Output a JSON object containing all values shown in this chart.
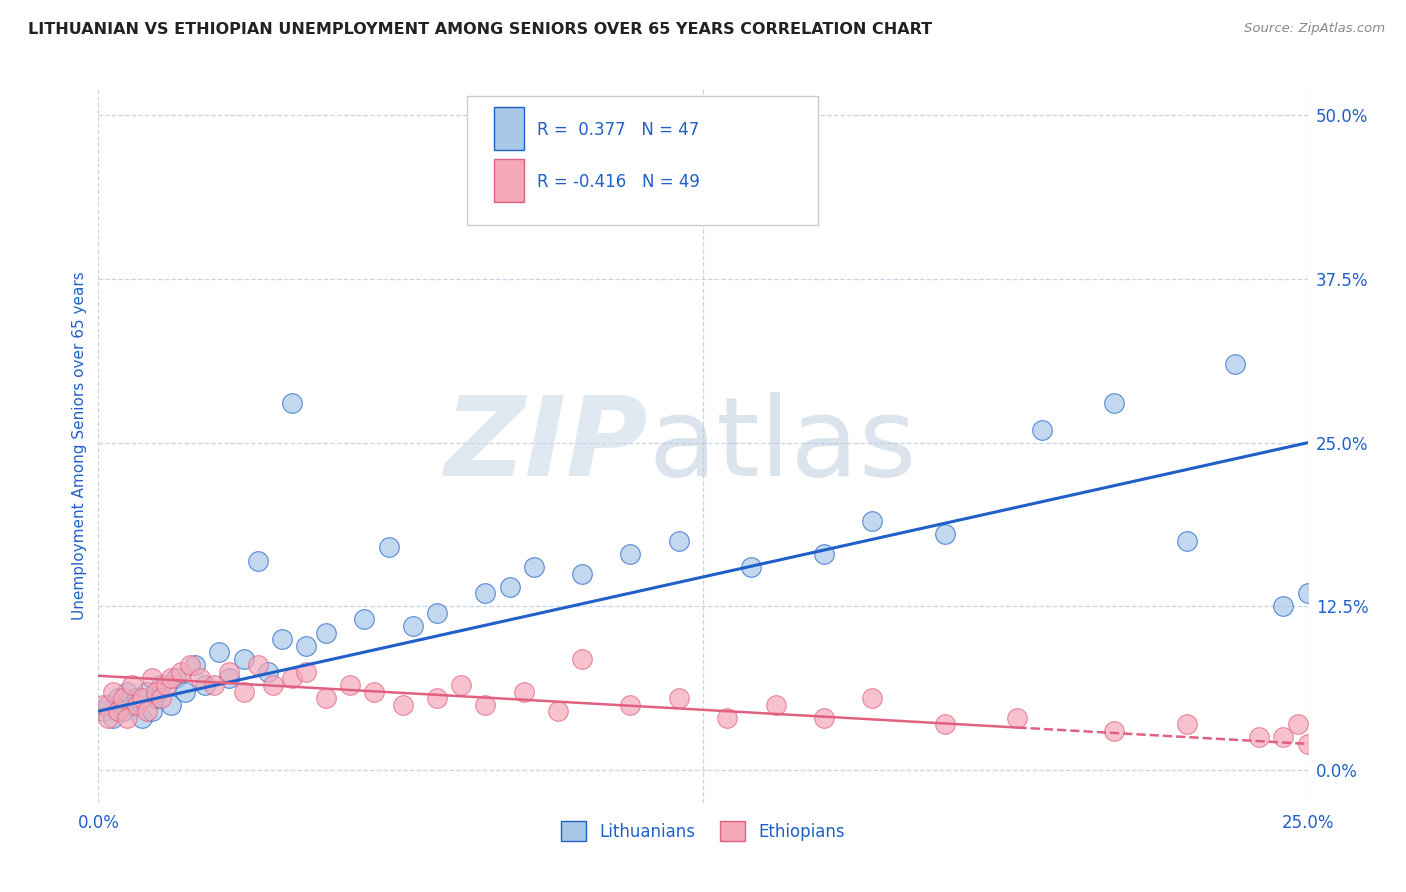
{
  "title": "LITHUANIAN VS ETHIOPIAN UNEMPLOYMENT AMONG SENIORS OVER 65 YEARS CORRELATION CHART",
  "source": "Source: ZipAtlas.com",
  "ylabel": "Unemployment Among Seniors over 65 years",
  "x_range": [
    0.0,
    0.25
  ],
  "y_range": [
    -0.025,
    0.52
  ],
  "watermark_zip": "ZIP",
  "watermark_atlas": "atlas",
  "lithuanian_color": "#a8c8e8",
  "ethiopian_color": "#f4a8b8",
  "line_lith_color": "#2060c8",
  "line_eth_color": "#e06080",
  "lith_scatter_x": [
    0.001,
    0.002,
    0.003,
    0.004,
    0.005,
    0.006,
    0.007,
    0.008,
    0.009,
    0.01,
    0.011,
    0.012,
    0.013,
    0.015,
    0.016,
    0.018,
    0.02,
    0.022,
    0.025,
    0.027,
    0.03,
    0.033,
    0.035,
    0.038,
    0.04,
    0.043,
    0.047,
    0.055,
    0.06,
    0.065,
    0.07,
    0.08,
    0.085,
    0.09,
    0.1,
    0.11,
    0.12,
    0.135,
    0.15,
    0.16,
    0.175,
    0.195,
    0.21,
    0.225,
    0.235,
    0.245,
    0.25
  ],
  "lith_scatter_y": [
    0.045,
    0.05,
    0.04,
    0.055,
    0.045,
    0.06,
    0.05,
    0.055,
    0.04,
    0.06,
    0.045,
    0.055,
    0.065,
    0.05,
    0.07,
    0.06,
    0.08,
    0.065,
    0.09,
    0.07,
    0.085,
    0.16,
    0.075,
    0.1,
    0.28,
    0.095,
    0.105,
    0.115,
    0.17,
    0.11,
    0.12,
    0.135,
    0.14,
    0.155,
    0.15,
    0.165,
    0.175,
    0.155,
    0.165,
    0.19,
    0.18,
    0.26,
    0.28,
    0.175,
    0.31,
    0.125,
    0.135
  ],
  "eth_scatter_x": [
    0.001,
    0.002,
    0.003,
    0.004,
    0.005,
    0.006,
    0.007,
    0.008,
    0.009,
    0.01,
    0.011,
    0.012,
    0.013,
    0.014,
    0.015,
    0.017,
    0.019,
    0.021,
    0.024,
    0.027,
    0.03,
    0.033,
    0.036,
    0.04,
    0.043,
    0.047,
    0.052,
    0.057,
    0.063,
    0.07,
    0.075,
    0.08,
    0.088,
    0.095,
    0.1,
    0.11,
    0.12,
    0.13,
    0.14,
    0.15,
    0.16,
    0.175,
    0.19,
    0.21,
    0.225,
    0.24,
    0.245,
    0.248,
    0.25
  ],
  "eth_scatter_y": [
    0.05,
    0.04,
    0.06,
    0.045,
    0.055,
    0.04,
    0.065,
    0.05,
    0.055,
    0.045,
    0.07,
    0.06,
    0.055,
    0.065,
    0.07,
    0.075,
    0.08,
    0.07,
    0.065,
    0.075,
    0.06,
    0.08,
    0.065,
    0.07,
    0.075,
    0.055,
    0.065,
    0.06,
    0.05,
    0.055,
    0.065,
    0.05,
    0.06,
    0.045,
    0.085,
    0.05,
    0.055,
    0.04,
    0.05,
    0.04,
    0.055,
    0.035,
    0.04,
    0.03,
    0.035,
    0.025,
    0.025,
    0.035,
    0.02
  ],
  "lith_line_x": [
    0.0,
    0.25
  ],
  "lith_line_y": [
    0.045,
    0.25
  ],
  "eth_line_x": [
    0.0,
    0.25
  ],
  "eth_line_y": [
    0.072,
    0.02
  ],
  "grid_color": "#c8d4e4",
  "bg_color": "#ffffff",
  "title_color": "#222222",
  "tick_color": "#2060c8",
  "legend_r1_text": "R =  0.377   N = 47",
  "legend_r2_text": "R = -0.416   N = 49",
  "y_ticks": [
    0.0,
    0.125,
    0.25,
    0.375,
    0.5
  ],
  "y_tick_labels": [
    "0.0%",
    "12.5%",
    "25.0%",
    "37.5%",
    "50.0%"
  ],
  "x_ticks": [
    0.0,
    0.25
  ],
  "x_tick_labels": [
    "0.0%",
    "25.0%"
  ]
}
